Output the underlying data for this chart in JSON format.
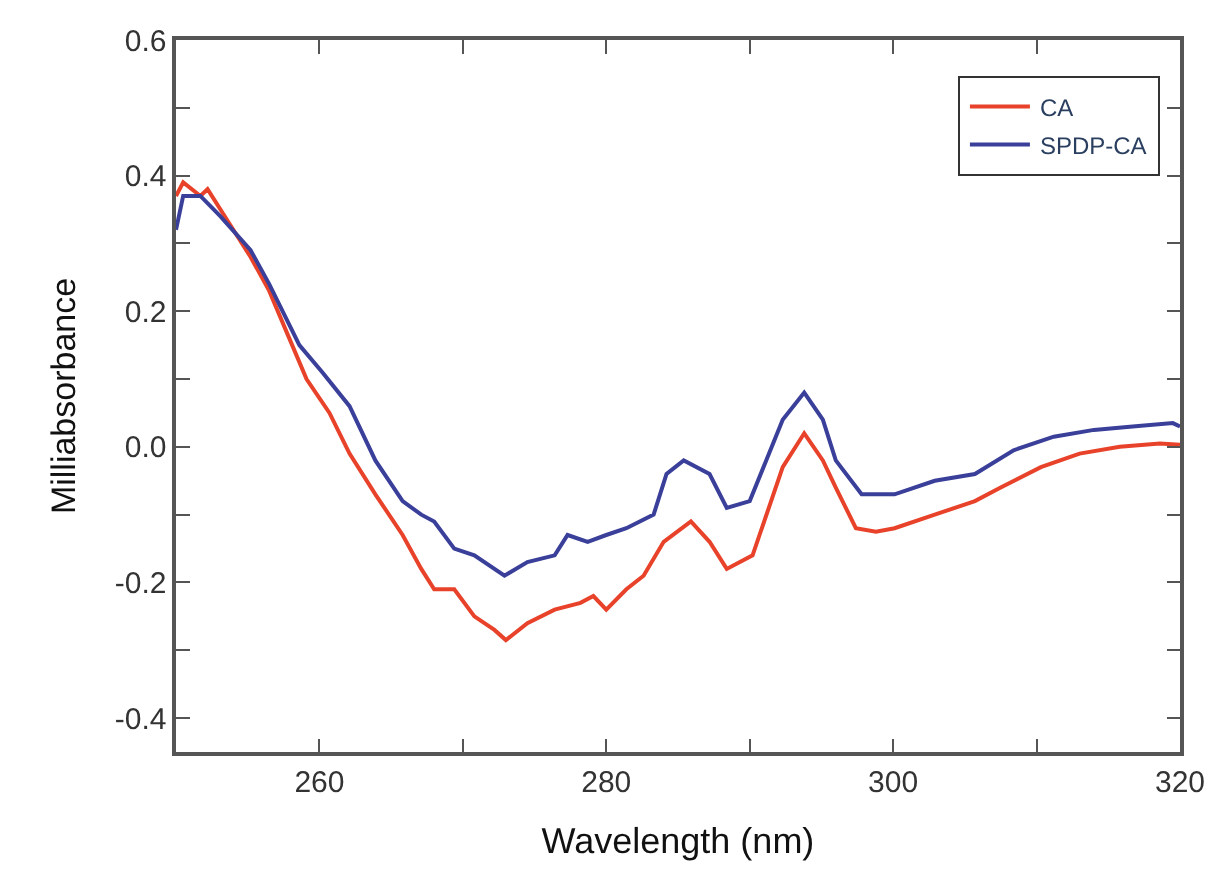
{
  "chart_data": {
    "type": "line",
    "xlabel": "Wavelength (nm)",
    "ylabel": "Milliabsorbance",
    "xlim": [
      250,
      320
    ],
    "ylim": [
      -0.45,
      0.6
    ],
    "xticks": [
      {
        "value": 250,
        "label": null
      },
      260,
      {
        "value": 270,
        "label": null
      },
      280,
      {
        "value": 290,
        "label": null
      },
      300,
      {
        "value": 310,
        "label": null
      },
      320
    ],
    "yticks": [
      -0.4,
      {
        "value": -0.3,
        "label": null
      },
      -0.2,
      {
        "value": -0.1,
        "label": null
      },
      {
        "value": 0,
        "label": "0.0"
      },
      {
        "value": 0.1,
        "label": null
      },
      0.2,
      {
        "value": 0.3,
        "label": null
      },
      0.4,
      {
        "value": 0.5,
        "label": null
      },
      0.6
    ],
    "legend": "top right",
    "marker": "none",
    "line_style": "solid",
    "series": [
      {
        "name": "CA",
        "color": "#e8432a",
        "x": [
          250,
          250.5,
          251.7,
          252.2,
          253.1,
          255.2,
          256.5,
          257.9,
          259.1,
          260.7,
          262.1,
          263.9,
          265.8,
          267.1,
          268,
          269.4,
          270.8,
          272.2,
          273,
          274.5,
          276.4,
          278.2,
          279.1,
          280,
          281.4,
          282.6,
          284,
          285.9,
          287.2,
          288.4,
          290.2,
          292.3,
          293.8,
          295.1,
          296,
          297.4,
          298.8,
          300.1,
          302.9,
          305.7,
          307.5,
          310.3,
          313,
          315.8,
          318.6,
          320
        ],
        "values": [
          0.37,
          0.39,
          0.37,
          0.38,
          0.35,
          0.28,
          0.23,
          0.16,
          0.1,
          0.05,
          -0.01,
          -0.07,
          -0.13,
          -0.18,
          -0.21,
          -0.21,
          -0.25,
          -0.27,
          -0.285,
          -0.26,
          -0.24,
          -0.23,
          -0.22,
          -0.24,
          -0.21,
          -0.19,
          -0.14,
          -0.11,
          -0.14,
          -0.18,
          -0.16,
          -0.03,
          0.02,
          -0.02,
          -0.06,
          -0.12,
          -0.125,
          -0.12,
          -0.1,
          -0.08,
          -0.06,
          -0.03,
          -0.01,
          0.0,
          0.005,
          0.003
        ]
      },
      {
        "name": "SPDP-CA",
        "color": "#3a3f9a",
        "x": [
          250,
          250.5,
          251.7,
          253.1,
          255.2,
          256.5,
          258.6,
          260.2,
          262.1,
          263.9,
          265.8,
          267.1,
          268,
          269.4,
          270.8,
          272.9,
          274.5,
          276.4,
          277.3,
          278.7,
          280,
          281.4,
          283.3,
          284.2,
          285.4,
          287.2,
          288.4,
          290,
          292.3,
          293.8,
          295.1,
          296,
          297.8,
          300.1,
          302.9,
          305.7,
          308.4,
          311.2,
          314,
          316.7,
          319.5,
          320
        ],
        "values": [
          0.32,
          0.37,
          0.37,
          0.34,
          0.29,
          0.24,
          0.15,
          0.11,
          0.06,
          -0.02,
          -0.08,
          -0.1,
          -0.11,
          -0.15,
          -0.16,
          -0.19,
          -0.17,
          -0.16,
          -0.13,
          -0.14,
          -0.13,
          -0.12,
          -0.1,
          -0.04,
          -0.02,
          -0.04,
          -0.09,
          -0.08,
          0.04,
          0.08,
          0.04,
          -0.02,
          -0.07,
          -0.07,
          -0.05,
          -0.04,
          -0.005,
          0.015,
          0.025,
          0.03,
          0.035,
          0.03
        ]
      }
    ]
  }
}
